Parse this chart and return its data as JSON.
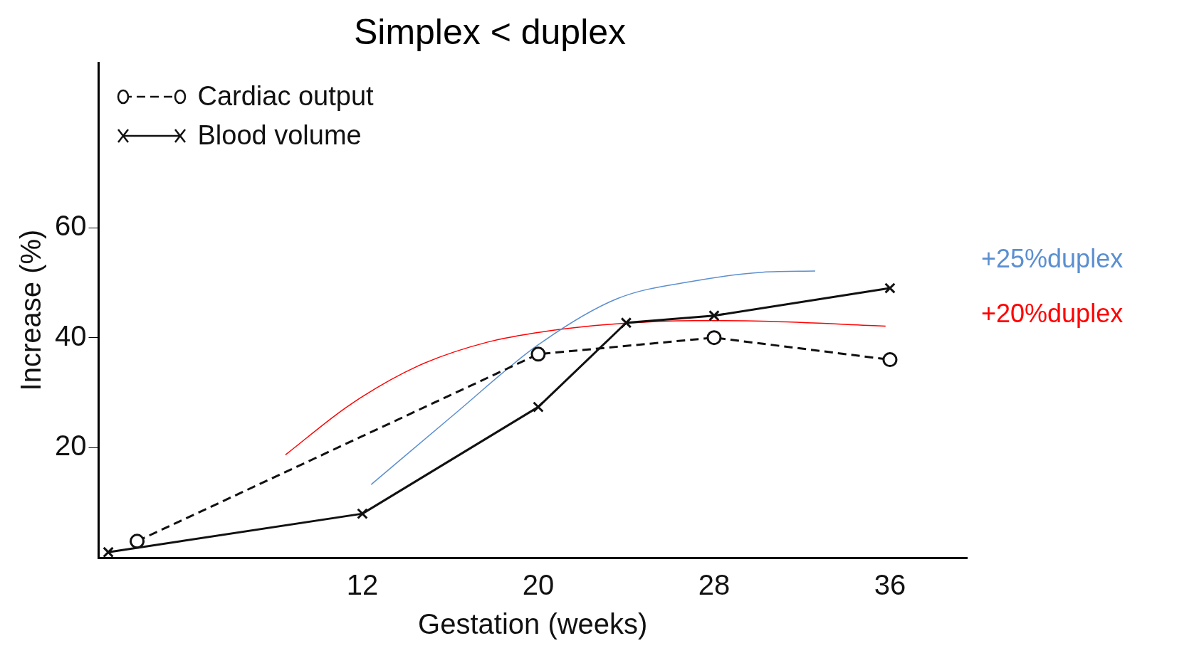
{
  "chart_data": {
    "type": "line",
    "title": "Simplex < duplex",
    "xlabel": "Gestation (weeks)",
    "ylabel": "Increase (%)",
    "xlim": [
      0,
      39.5
    ],
    "xticks": [
      12,
      20,
      28,
      36
    ],
    "ylim": [
      0,
      90
    ],
    "yticks": [
      20,
      40,
      60
    ],
    "grid": false,
    "legend": "top left",
    "series": [
      {
        "name": "Cardiac output",
        "color": "#111111",
        "marker": "circle",
        "line_style": "dashed",
        "x": [
          1.75,
          20,
          28,
          36
        ],
        "values": [
          3,
          37,
          40,
          36
        ]
      },
      {
        "name": "Blood volume",
        "color": "#111111",
        "marker": "cross",
        "line_style": "solid",
        "x": [
          0.44,
          12,
          20,
          24,
          28,
          36
        ],
        "values": [
          1,
          8,
          27.4,
          42.7,
          44,
          49
        ]
      },
      {
        "name": "+25%duplex",
        "color": "#5b8fd0",
        "marker": "none",
        "line_style": "solid",
        "x": [
          12.4,
          16.1,
          20,
          23.6,
          27.1,
          30.2,
          32.6
        ],
        "values": [
          13.3,
          25.8,
          38.7,
          47.1,
          50.3,
          51.9,
          52.1
        ]
      },
      {
        "name": "+20%duplex",
        "color": "#ff0000",
        "marker": "none",
        "line_style": "solid",
        "x": [
          8.5,
          11.4,
          14.5,
          17.7,
          20.8,
          23.9,
          27.1,
          30.2,
          35.8
        ],
        "values": [
          18.7,
          27.7,
          34.8,
          39.2,
          41.4,
          42.6,
          43.1,
          43,
          42.1
        ]
      }
    ]
  }
}
